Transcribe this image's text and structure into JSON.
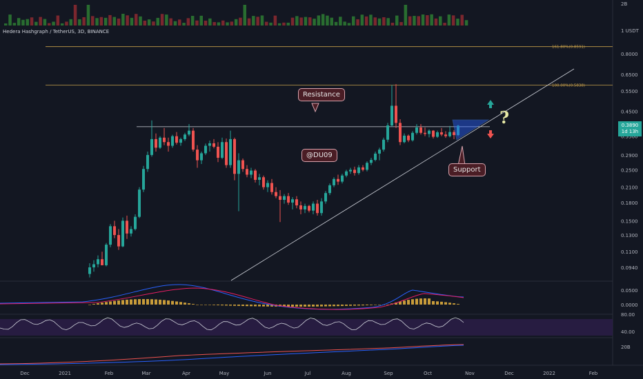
{
  "title": "Hedera Hashgraph / TetherUS, 3D, BINANCE",
  "price_badge": {
    "price": "0.3890",
    "countdown": "1d 13h"
  },
  "annotations": {
    "resistance": "Resistance",
    "support": "Support",
    "author": "@DU09",
    "question": "?"
  },
  "colors": {
    "background": "#131722",
    "up": "#26a69a",
    "down": "#ef5350",
    "resistance_line": "#d1d4dc",
    "fib_line": "#c8a04a",
    "macd_line": "#2962ff",
    "signal_line": "#e91e63",
    "histogram": "#c89c3a",
    "rsi_band": "#2d1e4a"
  },
  "chart_data": {
    "type": "candlestick",
    "log_scale": true,
    "x_axis_labels": [
      "Dec",
      "2021",
      "Feb",
      "Mar",
      "Apr",
      "May",
      "Jun",
      "Jul",
      "Aug",
      "Sep",
      "Oct",
      "Nov",
      "Dec",
      "2022",
      "Feb"
    ],
    "y_axis_labels": [
      "1 USDT",
      "0.8000",
      "0.6500",
      "0.5500",
      "0.4500",
      "0.3500",
      "0.2900",
      "0.2500",
      "0.2100",
      "0.1800",
      "0.1500",
      "0.1300",
      "0.1100",
      "0.0940"
    ],
    "volume_axis_label": "2B",
    "fib_levels": [
      {
        "label": "161.80%(0.8591)",
        "value": 0.8591
      },
      {
        "label": "100.00%(0.5838)",
        "value": 0.5838
      }
    ],
    "resistance_level": 0.385,
    "candles": [
      {
        "o": 0.088,
        "h": 0.098,
        "l": 0.085,
        "c": 0.094
      },
      {
        "o": 0.094,
        "h": 0.101,
        "l": 0.09,
        "c": 0.097
      },
      {
        "o": 0.097,
        "h": 0.106,
        "l": 0.094,
        "c": 0.102
      },
      {
        "o": 0.102,
        "h": 0.11,
        "l": 0.098,
        "c": 0.096
      },
      {
        "o": 0.096,
        "h": 0.12,
        "l": 0.095,
        "c": 0.118
      },
      {
        "o": 0.118,
        "h": 0.145,
        "l": 0.115,
        "c": 0.142
      },
      {
        "o": 0.142,
        "h": 0.15,
        "l": 0.126,
        "c": 0.13
      },
      {
        "o": 0.13,
        "h": 0.138,
        "l": 0.112,
        "c": 0.116
      },
      {
        "o": 0.116,
        "h": 0.155,
        "l": 0.115,
        "c": 0.15
      },
      {
        "o": 0.15,
        "h": 0.158,
        "l": 0.125,
        "c": 0.132
      },
      {
        "o": 0.132,
        "h": 0.142,
        "l": 0.128,
        "c": 0.138
      },
      {
        "o": 0.138,
        "h": 0.16,
        "l": 0.136,
        "c": 0.156
      },
      {
        "o": 0.156,
        "h": 0.21,
        "l": 0.154,
        "c": 0.205
      },
      {
        "o": 0.205,
        "h": 0.26,
        "l": 0.2,
        "c": 0.252
      },
      {
        "o": 0.252,
        "h": 0.3,
        "l": 0.245,
        "c": 0.29
      },
      {
        "o": 0.29,
        "h": 0.41,
        "l": 0.285,
        "c": 0.34
      },
      {
        "o": 0.34,
        "h": 0.36,
        "l": 0.3,
        "c": 0.312
      },
      {
        "o": 0.312,
        "h": 0.35,
        "l": 0.308,
        "c": 0.345
      },
      {
        "o": 0.345,
        "h": 0.38,
        "l": 0.32,
        "c": 0.33
      },
      {
        "o": 0.33,
        "h": 0.345,
        "l": 0.3,
        "c": 0.318
      },
      {
        "o": 0.318,
        "h": 0.355,
        "l": 0.312,
        "c": 0.35
      },
      {
        "o": 0.35,
        "h": 0.365,
        "l": 0.322,
        "c": 0.328
      },
      {
        "o": 0.328,
        "h": 0.345,
        "l": 0.318,
        "c": 0.34
      },
      {
        "o": 0.34,
        "h": 0.362,
        "l": 0.334,
        "c": 0.356
      },
      {
        "o": 0.356,
        "h": 0.395,
        "l": 0.35,
        "c": 0.37
      },
      {
        "o": 0.37,
        "h": 0.38,
        "l": 0.3,
        "c": 0.306
      },
      {
        "o": 0.306,
        "h": 0.32,
        "l": 0.255,
        "c": 0.275
      },
      {
        "o": 0.275,
        "h": 0.3,
        "l": 0.265,
        "c": 0.295
      },
      {
        "o": 0.295,
        "h": 0.325,
        "l": 0.29,
        "c": 0.318
      },
      {
        "o": 0.318,
        "h": 0.335,
        "l": 0.3,
        "c": 0.326
      },
      {
        "o": 0.326,
        "h": 0.34,
        "l": 0.31,
        "c": 0.315
      },
      {
        "o": 0.315,
        "h": 0.33,
        "l": 0.27,
        "c": 0.282
      },
      {
        "o": 0.282,
        "h": 0.345,
        "l": 0.278,
        "c": 0.33
      },
      {
        "o": 0.33,
        "h": 0.342,
        "l": 0.255,
        "c": 0.262
      },
      {
        "o": 0.262,
        "h": 0.37,
        "l": 0.255,
        "c": 0.34
      },
      {
        "o": 0.34,
        "h": 0.345,
        "l": 0.225,
        "c": 0.24
      },
      {
        "o": 0.24,
        "h": 0.295,
        "l": 0.165,
        "c": 0.275
      },
      {
        "o": 0.275,
        "h": 0.28,
        "l": 0.245,
        "c": 0.252
      },
      {
        "o": 0.252,
        "h": 0.262,
        "l": 0.232,
        "c": 0.238
      },
      {
        "o": 0.238,
        "h": 0.255,
        "l": 0.23,
        "c": 0.248
      },
      {
        "o": 0.248,
        "h": 0.252,
        "l": 0.22,
        "c": 0.226
      },
      {
        "o": 0.226,
        "h": 0.24,
        "l": 0.214,
        "c": 0.232
      },
      {
        "o": 0.232,
        "h": 0.236,
        "l": 0.205,
        "c": 0.21
      },
      {
        "o": 0.21,
        "h": 0.225,
        "l": 0.2,
        "c": 0.219
      },
      {
        "o": 0.219,
        "h": 0.228,
        "l": 0.195,
        "c": 0.2
      },
      {
        "o": 0.2,
        "h": 0.21,
        "l": 0.188,
        "c": 0.192
      },
      {
        "o": 0.192,
        "h": 0.204,
        "l": 0.148,
        "c": 0.185
      },
      {
        "o": 0.185,
        "h": 0.196,
        "l": 0.178,
        "c": 0.192
      },
      {
        "o": 0.192,
        "h": 0.198,
        "l": 0.176,
        "c": 0.18
      },
      {
        "o": 0.18,
        "h": 0.19,
        "l": 0.168,
        "c": 0.186
      },
      {
        "o": 0.186,
        "h": 0.192,
        "l": 0.17,
        "c": 0.175
      },
      {
        "o": 0.175,
        "h": 0.182,
        "l": 0.16,
        "c": 0.168
      },
      {
        "o": 0.168,
        "h": 0.178,
        "l": 0.162,
        "c": 0.174
      },
      {
        "o": 0.174,
        "h": 0.176,
        "l": 0.163,
        "c": 0.166
      },
      {
        "o": 0.166,
        "h": 0.182,
        "l": 0.16,
        "c": 0.178
      },
      {
        "o": 0.178,
        "h": 0.185,
        "l": 0.158,
        "c": 0.162
      },
      {
        "o": 0.162,
        "h": 0.188,
        "l": 0.158,
        "c": 0.182
      },
      {
        "o": 0.182,
        "h": 0.202,
        "l": 0.178,
        "c": 0.198
      },
      {
        "o": 0.198,
        "h": 0.218,
        "l": 0.194,
        "c": 0.214
      },
      {
        "o": 0.214,
        "h": 0.232,
        "l": 0.21,
        "c": 0.228
      },
      {
        "o": 0.228,
        "h": 0.238,
        "l": 0.215,
        "c": 0.222
      },
      {
        "o": 0.222,
        "h": 0.24,
        "l": 0.218,
        "c": 0.236
      },
      {
        "o": 0.236,
        "h": 0.25,
        "l": 0.232,
        "c": 0.246
      },
      {
        "o": 0.246,
        "h": 0.255,
        "l": 0.24,
        "c": 0.25
      },
      {
        "o": 0.25,
        "h": 0.258,
        "l": 0.236,
        "c": 0.242
      },
      {
        "o": 0.242,
        "h": 0.262,
        "l": 0.238,
        "c": 0.256
      },
      {
        "o": 0.256,
        "h": 0.262,
        "l": 0.246,
        "c": 0.25
      },
      {
        "o": 0.25,
        "h": 0.272,
        "l": 0.246,
        "c": 0.268
      },
      {
        "o": 0.268,
        "h": 0.282,
        "l": 0.262,
        "c": 0.276
      },
      {
        "o": 0.276,
        "h": 0.3,
        "l": 0.272,
        "c": 0.294
      },
      {
        "o": 0.294,
        "h": 0.312,
        "l": 0.275,
        "c": 0.306
      },
      {
        "o": 0.306,
        "h": 0.345,
        "l": 0.3,
        "c": 0.338
      },
      {
        "o": 0.338,
        "h": 0.4,
        "l": 0.33,
        "c": 0.39
      },
      {
        "o": 0.39,
        "h": 0.585,
        "l": 0.385,
        "c": 0.475
      },
      {
        "o": 0.475,
        "h": 0.59,
        "l": 0.38,
        "c": 0.4
      },
      {
        "o": 0.4,
        "h": 0.415,
        "l": 0.32,
        "c": 0.33
      },
      {
        "o": 0.33,
        "h": 0.36,
        "l": 0.326,
        "c": 0.352
      },
      {
        "o": 0.352,
        "h": 0.356,
        "l": 0.33,
        "c": 0.336
      },
      {
        "o": 0.336,
        "h": 0.368,
        "l": 0.332,
        "c": 0.362
      },
      {
        "o": 0.362,
        "h": 0.395,
        "l": 0.356,
        "c": 0.382
      },
      {
        "o": 0.382,
        "h": 0.395,
        "l": 0.356,
        "c": 0.362
      },
      {
        "o": 0.362,
        "h": 0.382,
        "l": 0.35,
        "c": 0.358
      },
      {
        "o": 0.358,
        "h": 0.375,
        "l": 0.346,
        "c": 0.37
      },
      {
        "o": 0.37,
        "h": 0.372,
        "l": 0.342,
        "c": 0.348
      },
      {
        "o": 0.348,
        "h": 0.37,
        "l": 0.344,
        "c": 0.364
      },
      {
        "o": 0.364,
        "h": 0.38,
        "l": 0.35,
        "c": 0.356
      },
      {
        "o": 0.356,
        "h": 0.368,
        "l": 0.344,
        "c": 0.35
      },
      {
        "o": 0.35,
        "h": 0.388,
        "l": 0.346,
        "c": 0.365
      },
      {
        "o": 0.365,
        "h": 0.372,
        "l": 0.34,
        "c": 0.354
      },
      {
        "o": 0.354,
        "h": 0.392,
        "l": 0.35,
        "c": 0.389
      }
    ]
  }
}
